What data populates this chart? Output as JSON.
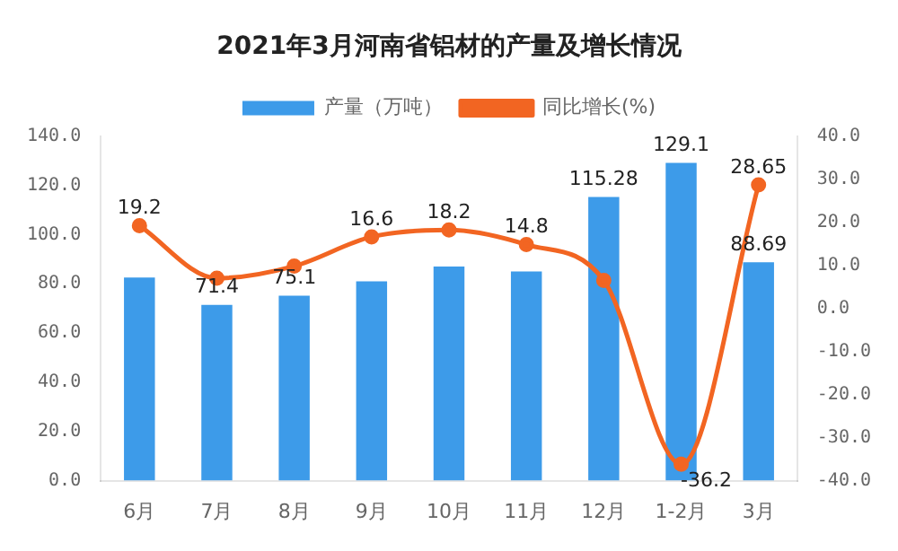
{
  "chart_data": {
    "type": "bar",
    "title": "2021年3月河南省铝材的产量及增长情况",
    "categories": [
      "6月",
      "7月",
      "8月",
      "9月",
      "10月",
      "11月",
      "12月",
      "1-2月",
      "3月"
    ],
    "series": [
      {
        "name": "产量（万吨）",
        "color": "#3d9be9",
        "values": [
          82.5,
          71.4,
          75.1,
          81,
          87,
          85,
          115.28,
          129.1,
          88.69
        ],
        "value_labels": [
          null,
          "71.4",
          "75.1",
          null,
          null,
          null,
          "115.28",
          "129.1",
          "88.69"
        ]
      },
      {
        "name": "同比增长(%)",
        "type": "line",
        "axis": "y2",
        "color": "#f26522",
        "marker": "circle",
        "values": [
          19.2,
          7,
          9.8,
          16.6,
          18.2,
          14.8,
          6.5,
          -36.2,
          28.65
        ],
        "value_labels": [
          "19.2",
          null,
          null,
          "16.6",
          "18.2",
          "14.8",
          null,
          "-36.2",
          "28.65"
        ]
      }
    ],
    "ylim": [
      0,
      140
    ],
    "yticks": [
      {
        "value": 0,
        "label": "0.0"
      },
      {
        "value": 20,
        "label": "20.0"
      },
      {
        "value": 40,
        "label": "40.0"
      },
      {
        "value": 60,
        "label": "60.0"
      },
      {
        "value": 80,
        "label": "80.0"
      },
      {
        "value": 100,
        "label": "100.0"
      },
      {
        "value": 120,
        "label": "120.0"
      },
      {
        "value": 140,
        "label": "140.0"
      }
    ],
    "y2lim": [
      -40,
      40
    ],
    "y2ticks": [
      {
        "value": -40,
        "label": "-40.0"
      },
      {
        "value": -30,
        "label": "-30.0"
      },
      {
        "value": -20,
        "label": "-20.0"
      },
      {
        "value": -10,
        "label": "-10.0"
      },
      {
        "value": 0,
        "label": "0.0"
      },
      {
        "value": 10,
        "label": "10.0"
      },
      {
        "value": 20,
        "label": "20.0"
      },
      {
        "value": 30,
        "label": "30.0"
      },
      {
        "value": 40,
        "label": "40.0"
      }
    ],
    "legend": "top",
    "grid": false
  }
}
